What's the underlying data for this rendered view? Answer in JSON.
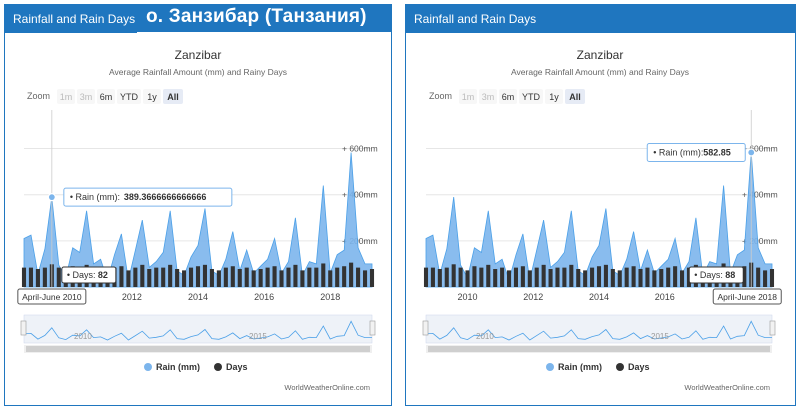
{
  "overlay_title": "о. Занзибар (Танзания)",
  "colors": {
    "header": "#1f76bf",
    "rain": "#7cb5ec",
    "rain_line": "#4ba0e8",
    "days": "#333333"
  },
  "panels": [
    {
      "header": "Rainfall and Rain Days",
      "credit": "WorldWeatherOnline.com",
      "tooltips": {
        "rain_label": "Rain (mm):",
        "rain_value": "389.3666666666666",
        "days_label": "Days:",
        "days_value": "82",
        "period": "April-June 2010"
      }
    },
    {
      "header": "Rainfall and Rain Days",
      "credit": "WorldWeatherOnline.com",
      "tooltips": {
        "rain_label": "Rain (mm):",
        "rain_value": "582.85",
        "days_label": "Days:",
        "days_value": "88",
        "period": "April-June 2018"
      }
    }
  ],
  "chart_data": {
    "type": "area",
    "title": "Zanzibar",
    "subtitle": "Average Rainfall Amount (mm) and Rainy Days",
    "zoom": {
      "label": "Zoom",
      "buttons": [
        "1m",
        "3m",
        "6m",
        "YTD",
        "1y",
        "All"
      ],
      "active": "All",
      "disabled": [
        "1m",
        "3m"
      ]
    },
    "x_ticks": [
      "2010",
      "2012",
      "2014",
      "2016",
      "2018"
    ],
    "y_ticks": [
      "+ 200mm",
      "+ 400mm",
      "+ 600mm"
    ],
    "navigator_ticks": [
      "2010",
      "2015"
    ],
    "legend": [
      "Rain (mm)",
      "Days"
    ],
    "ylim": [
      0,
      650
    ],
    "series": [
      {
        "name": "Rain (mm)",
        "type": "area",
        "values": [
          210,
          225,
          55,
          165,
          389.37,
          95,
          40,
          170,
          150,
          330,
          100,
          120,
          30,
          140,
          230,
          30,
          160,
          290,
          85,
          110,
          150,
          330,
          70,
          50,
          130,
          180,
          340,
          70,
          50,
          120,
          240,
          70,
          160,
          60,
          90,
          120,
          210,
          60,
          110,
          300,
          50,
          110,
          100,
          440,
          60,
          140,
          160,
          582.85,
          170,
          100,
          100
        ]
      },
      {
        "name": "Days",
        "type": "bar",
        "values": [
          70,
          70,
          65,
          70,
          82,
          70,
          60,
          75,
          70,
          80,
          65,
          70,
          60,
          70,
          75,
          60,
          70,
          80,
          65,
          70,
          70,
          80,
          65,
          60,
          70,
          75,
          80,
          65,
          60,
          70,
          75,
          65,
          70,
          60,
          65,
          70,
          75,
          60,
          70,
          80,
          60,
          70,
          70,
          85,
          60,
          70,
          75,
          88,
          70,
          60,
          65
        ]
      }
    ]
  }
}
